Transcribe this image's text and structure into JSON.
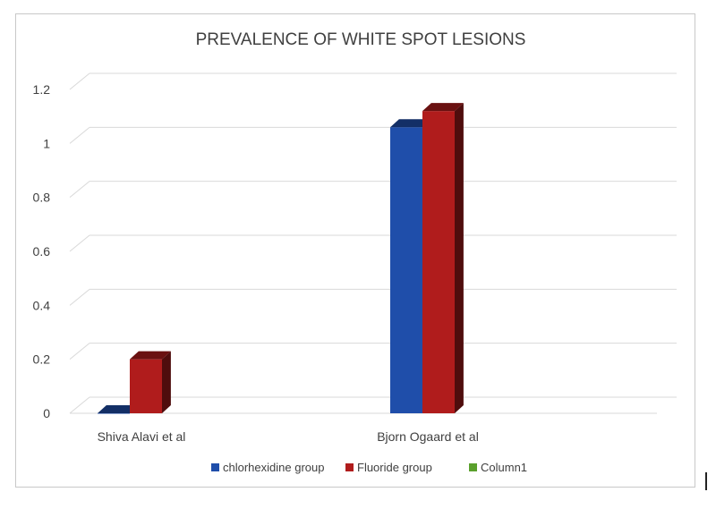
{
  "chart_data": {
    "type": "bar",
    "title": "PREVALENCE OF WHITE SPOT LESIONS",
    "categories": [
      "Shiva Alavi et al",
      "Bjorn Ogaard et al"
    ],
    "series": [
      {
        "name": "chlorhexidine group",
        "values": [
          0,
          1.06
        ],
        "color": "#1f4eaa"
      },
      {
        "name": "Fluoride group",
        "values": [
          0.2,
          1.12
        ],
        "color": "#b01c1c"
      },
      {
        "name": "Column1",
        "values": [
          0,
          0
        ],
        "color": "#5aa02c"
      }
    ],
    "ylim": [
      0,
      1.2
    ],
    "yticks": [
      "0",
      "0.2",
      "0.4",
      "0.6",
      "0.8",
      "1",
      "1.2"
    ],
    "xlabel": "",
    "ylabel": "",
    "grid": true,
    "legend_position": "bottom",
    "style": "3d-clustered-bar"
  }
}
